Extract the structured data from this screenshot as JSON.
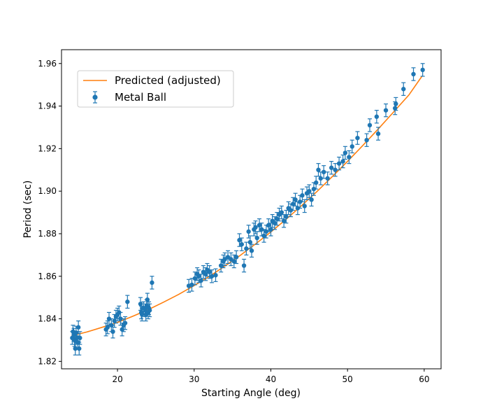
{
  "chart_data": {
    "type": "scatter",
    "xlabel": "Starting Angle (deg)",
    "ylabel": "Period (sec)",
    "xlim": [
      12.7,
      62.2
    ],
    "ylim": [
      1.8165,
      1.9665
    ],
    "xticks": [
      20,
      30,
      40,
      50,
      60
    ],
    "yticks": [
      1.82,
      1.84,
      1.86,
      1.88,
      1.9,
      1.92,
      1.94,
      1.96
    ],
    "ytick_labels": [
      "1.82",
      "1.84",
      "1.86",
      "1.88",
      "1.90",
      "1.92",
      "1.94",
      "1.96"
    ],
    "grid": false,
    "legend": {
      "position": "upper-left",
      "entries": [
        {
          "label": "Predicted (adjusted)",
          "kind": "line",
          "color": "#ff7f0e"
        },
        {
          "label": "Metal Ball",
          "kind": "errorbar",
          "color": "#1f77b4"
        }
      ]
    },
    "series": [
      {
        "name": "Predicted (adjusted)",
        "kind": "line",
        "color": "#ff7f0e",
        "x": [
          14,
          16,
          18,
          20,
          22,
          24,
          26,
          28,
          30,
          32,
          34,
          36,
          38,
          40,
          42,
          44,
          46,
          48,
          50,
          52,
          54,
          56,
          58,
          59.7
        ],
        "y": [
          1.832,
          1.8338,
          1.836,
          1.8383,
          1.8412,
          1.8443,
          1.8478,
          1.8515,
          1.8556,
          1.86,
          1.8648,
          1.8698,
          1.8752,
          1.8808,
          1.8868,
          1.8932,
          1.8998,
          1.9068,
          1.914,
          1.9215,
          1.9292,
          1.9372,
          1.9452,
          1.954
        ]
      },
      {
        "name": "Metal Ball",
        "kind": "errorbar",
        "color": "#1f77b4",
        "yerr": 0.003,
        "x": [
          14.1,
          14.2,
          14.3,
          14.4,
          14.5,
          14.6,
          14.7,
          14.8,
          14.9,
          15.0,
          15.1,
          18.5,
          18.7,
          18.9,
          19.2,
          19.4,
          19.6,
          19.8,
          20.0,
          20.2,
          20.4,
          20.6,
          20.8,
          21.0,
          21.3,
          23.0,
          23.1,
          23.2,
          23.4,
          23.6,
          23.7,
          23.8,
          23.9,
          24.0,
          24.1,
          24.2,
          24.5,
          29.3,
          29.7,
          30.1,
          30.4,
          30.6,
          30.9,
          31.2,
          31.5,
          31.7,
          32.0,
          32.3,
          32.8,
          33.5,
          33.8,
          34.0,
          34.4,
          34.8,
          35.2,
          35.5,
          35.9,
          36.2,
          36.5,
          36.8,
          37.1,
          37.3,
          37.5,
          37.8,
          38.0,
          38.2,
          38.5,
          38.8,
          39.1,
          39.4,
          39.7,
          40.0,
          40.2,
          40.5,
          40.8,
          41.1,
          41.4,
          41.7,
          42.0,
          42.3,
          42.6,
          42.9,
          43.2,
          43.5,
          43.8,
          44.1,
          44.4,
          44.7,
          45.0,
          45.3,
          45.6,
          45.9,
          46.2,
          46.5,
          46.9,
          47.4,
          47.9,
          48.4,
          48.9,
          49.4,
          49.7,
          50.2,
          50.6,
          51.3,
          52.5,
          52.9,
          53.8,
          54.0,
          55.0,
          56.2,
          56.3,
          57.3,
          58.6,
          59.8
        ],
        "y": [
          1.831,
          1.834,
          1.8325,
          1.83,
          1.826,
          1.8335,
          1.831,
          1.829,
          1.836,
          1.826,
          1.831,
          1.835,
          1.836,
          1.84,
          1.837,
          1.834,
          1.839,
          1.841,
          1.842,
          1.843,
          1.84,
          1.835,
          1.837,
          1.838,
          1.848,
          1.847,
          1.843,
          1.842,
          1.845,
          1.844,
          1.842,
          1.846,
          1.849,
          1.843,
          1.845,
          1.844,
          1.857,
          1.8555,
          1.856,
          1.859,
          1.861,
          1.86,
          1.858,
          1.862,
          1.861,
          1.863,
          1.862,
          1.86,
          1.8605,
          1.865,
          1.867,
          1.868,
          1.869,
          1.868,
          1.867,
          1.869,
          1.877,
          1.875,
          1.865,
          1.873,
          1.881,
          1.876,
          1.872,
          1.882,
          1.883,
          1.878,
          1.884,
          1.882,
          1.879,
          1.881,
          1.884,
          1.882,
          1.886,
          1.885,
          1.887,
          1.889,
          1.89,
          1.886,
          1.888,
          1.892,
          1.891,
          1.894,
          1.896,
          1.892,
          1.895,
          1.898,
          1.893,
          1.899,
          1.9,
          1.896,
          1.901,
          1.904,
          1.91,
          1.906,
          1.909,
          1.906,
          1.911,
          1.91,
          1.913,
          1.914,
          1.918,
          1.916,
          1.921,
          1.925,
          1.924,
          1.931,
          1.935,
          1.927,
          1.938,
          1.939,
          1.941,
          1.948,
          1.955,
          1.957
        ]
      }
    ]
  }
}
